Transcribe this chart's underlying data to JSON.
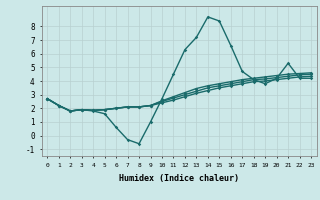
{
  "xlabel": "Humidex (Indice chaleur)",
  "bg_color": "#cce8e8",
  "grid_color": "#c0d8d8",
  "line_color": "#1a6b6b",
  "xlim": [
    -0.5,
    23.5
  ],
  "ylim": [
    -1.5,
    9.5
  ],
  "xticks": [
    0,
    1,
    2,
    3,
    4,
    5,
    6,
    7,
    8,
    9,
    10,
    11,
    12,
    13,
    14,
    15,
    16,
    17,
    18,
    19,
    20,
    21,
    22,
    23
  ],
  "yticks": [
    -1,
    0,
    1,
    2,
    3,
    4,
    5,
    6,
    7,
    8
  ],
  "series": [
    [
      2.7,
      2.2,
      1.8,
      1.9,
      1.8,
      1.6,
      0.6,
      -0.3,
      -0.6,
      1.0,
      2.7,
      4.5,
      6.3,
      7.2,
      8.7,
      8.4,
      6.6,
      4.7,
      4.1,
      3.8,
      4.2,
      5.3,
      4.2,
      4.2
    ],
    [
      2.7,
      2.2,
      1.8,
      1.9,
      1.85,
      1.9,
      2.0,
      2.1,
      2.1,
      2.2,
      2.4,
      2.6,
      2.85,
      3.1,
      3.3,
      3.5,
      3.65,
      3.8,
      3.95,
      4.0,
      4.1,
      4.2,
      4.3,
      4.35
    ],
    [
      2.7,
      2.2,
      1.8,
      1.9,
      1.85,
      1.9,
      2.0,
      2.1,
      2.1,
      2.2,
      2.5,
      2.75,
      3.0,
      3.25,
      3.5,
      3.65,
      3.8,
      3.95,
      4.1,
      4.15,
      4.25,
      4.35,
      4.45,
      4.5
    ],
    [
      2.7,
      2.2,
      1.8,
      1.9,
      1.85,
      1.9,
      2.0,
      2.1,
      2.1,
      2.2,
      2.55,
      2.85,
      3.15,
      3.45,
      3.65,
      3.8,
      3.95,
      4.1,
      4.2,
      4.3,
      4.4,
      4.5,
      4.55,
      4.6
    ]
  ]
}
